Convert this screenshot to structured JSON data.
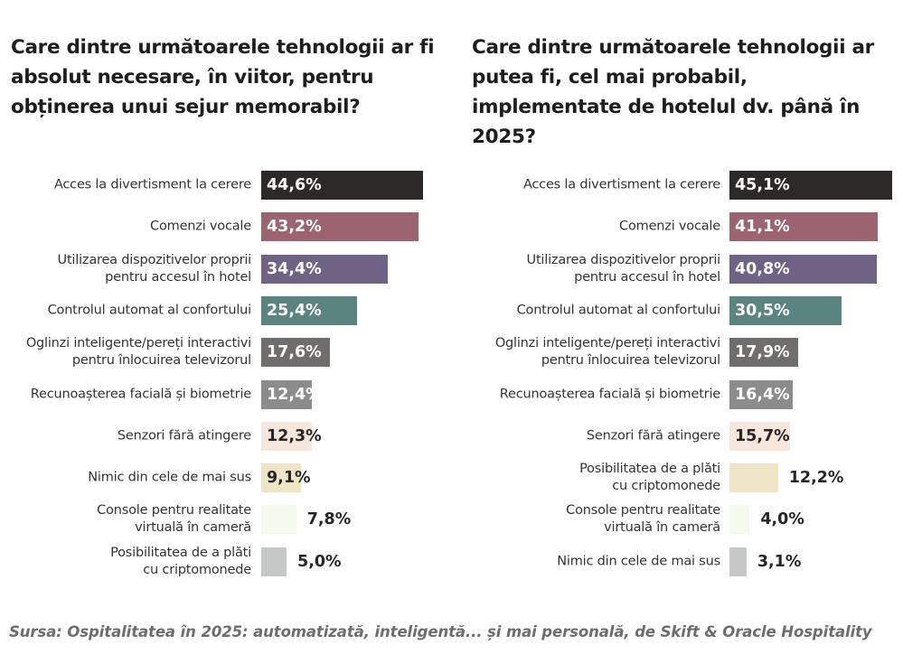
{
  "colors": [
    "#2b2a29",
    "#9b6470",
    "#6f6284",
    "#5a8480",
    "#6f6e6c",
    "#8c8c8c",
    "#f6e6dc",
    "#efe5c6",
    "#f4fbee",
    "#c6c7c7"
  ],
  "chart_data": [
    {
      "type": "bar",
      "orientation": "horizontal",
      "title": "Care dintre următoarele tehnologii ar fi absolut necesare, în viitor, pentru obținerea unui sejur memorabil?",
      "unit": "%",
      "categories": [
        "Acces la divertisment la cerere",
        "Comenzi vocale",
        "Utilizarea dispozitivelor proprii pentru accesul în hotel",
        "Controlul automat al confortului",
        "Oglinzi inteligente/pereți interactivi pentru înlocuirea televizorul",
        "Recunoașterea facială și biometrie",
        "Senzori fără atingere",
        "Nimic din cele de mai sus",
        "Console pentru realitate virtuală în cameră",
        "Posibilitatea de a plăti cu criptomonede"
      ],
      "category_lines": [
        [
          "Acces la divertisment la cerere"
        ],
        [
          "Comenzi vocale"
        ],
        [
          "Utilizarea dispozitivelor proprii",
          "pentru accesul în hotel"
        ],
        [
          "Controlul automat al confortului"
        ],
        [
          "Oglinzi inteligente/pereți interactivi",
          "pentru înlocuirea televizorul"
        ],
        [
          "Recunoașterea facială și biometrie"
        ],
        [
          "Senzori fără atingere"
        ],
        [
          "Nimic din cele de mai sus"
        ],
        [
          "Console pentru realitate",
          "virtuală în cameră"
        ],
        [
          "Posibilitatea de a plăti",
          "cu criptomonede"
        ]
      ],
      "values": [
        44.6,
        43.2,
        34.4,
        25.4,
        17.6,
        12.4,
        12.3,
        9.1,
        7.8,
        5.0
      ],
      "value_labels": [
        "44,6%",
        "43,2%",
        "34,4%",
        "25,4%",
        "17,6%",
        "12,4%",
        "12,3%",
        "9,1%",
        "7,8%",
        "5,0%"
      ],
      "label_inside": [
        true,
        true,
        true,
        true,
        true,
        true,
        true,
        true,
        false,
        false
      ]
    },
    {
      "type": "bar",
      "orientation": "horizontal",
      "title": "Care dintre următoarele tehnologii ar putea fi, cel mai probabil, implementate de hotelul dv. până în 2025?",
      "unit": "%",
      "categories": [
        "Acces la divertisment la cerere",
        "Comenzi vocale",
        "Utilizarea dispozitivelor proprii pentru accesul în hotel",
        "Controlul automat al confortului",
        "Oglinzi inteligente/pereți interactivi pentru înlocuirea televizorul",
        "Recunoașterea facială și biometrie",
        "Senzori fără atingere",
        "Posibilitatea de a plăti cu criptomonede",
        "Console pentru realitate virtuală în cameră",
        "Nimic din cele de mai sus"
      ],
      "category_lines": [
        [
          "Acces la divertisment la cerere"
        ],
        [
          "Comenzi vocale"
        ],
        [
          "Utilizarea dispozitivelor proprii",
          "pentru accesul în hotel"
        ],
        [
          "Controlul automat al confortului"
        ],
        [
          "Oglinzi inteligente/pereți interactivi",
          "pentru înlocuirea televizorul"
        ],
        [
          "Recunoașterea facială și biometrie"
        ],
        [
          "Senzori fără atingere"
        ],
        [
          "Posibilitatea de a plăti",
          "cu criptomonede"
        ],
        [
          "Console pentru realitate",
          "virtuală în cameră"
        ],
        [
          "Nimic din cele de mai sus"
        ]
      ],
      "values": [
        45.1,
        41.1,
        40.8,
        30.5,
        17.9,
        16.4,
        15.7,
        12.2,
        4.0,
        3.1
      ],
      "value_labels": [
        "45,1%",
        "41,1%",
        "40,8%",
        "30,5%",
        "17,9%",
        "16,4%",
        "15,7%",
        "12,2%",
        "4,0%",
        "3,1%"
      ],
      "label_inside": [
        true,
        true,
        true,
        true,
        true,
        true,
        true,
        false,
        false,
        false
      ]
    }
  ],
  "source": "Sursa: Ospitalitatea în 2025: automatizată, inteligentă... și mai personală, de Skift & Oracle Hospitality"
}
